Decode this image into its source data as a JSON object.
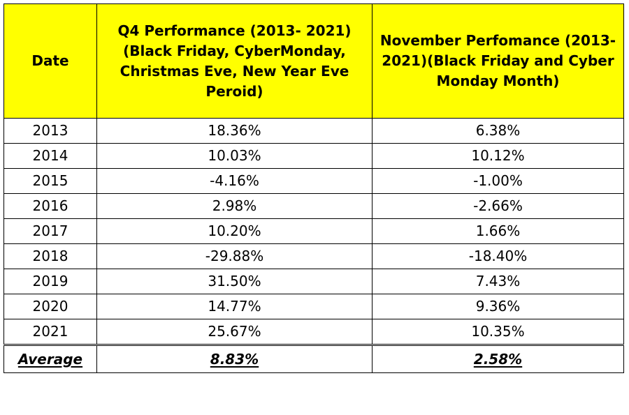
{
  "table": {
    "headers": {
      "date": "Date",
      "q4": "Q4 Performance (2013- 2021) (Black Friday, CyberMonday, Christmas Eve, New Year Eve Peroid)",
      "november": "November Perfomance (2013- 2021)(Black Friday and Cyber Monday Month)"
    },
    "rows": [
      {
        "date": "2013",
        "q4": "18.36%",
        "november": "6.38%"
      },
      {
        "date": "2014",
        "q4": "10.03%",
        "november": "10.12%"
      },
      {
        "date": "2015",
        "q4": "-4.16%",
        "november": "-1.00%"
      },
      {
        "date": "2016",
        "q4": "2.98%",
        "november": "-2.66%"
      },
      {
        "date": "2017",
        "q4": "10.20%",
        "november": "1.66%"
      },
      {
        "date": "2018",
        "q4": "-29.88%",
        "november": "-18.40%"
      },
      {
        "date": "2019",
        "q4": "31.50%",
        "november": "7.43%"
      },
      {
        "date": "2020",
        "q4": "14.77%",
        "november": "9.36%"
      },
      {
        "date": "2021",
        "q4": "25.67%",
        "november": "10.35%"
      }
    ],
    "average": {
      "label": "Average",
      "q4": "8.83%",
      "november": "2.58%"
    }
  },
  "colors": {
    "header_fill": "#ffff00",
    "border": "#000000",
    "background": "#ffffff"
  }
}
